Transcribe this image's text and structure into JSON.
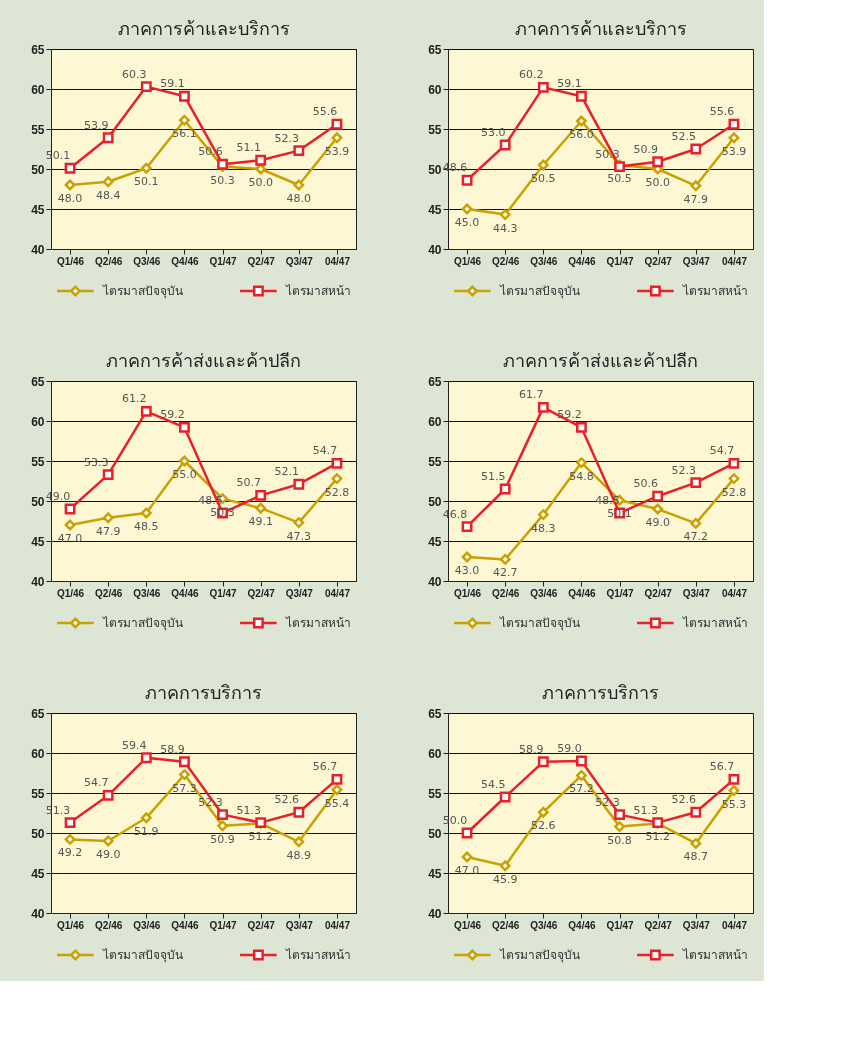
{
  "chart_data": [
    {
      "type": "line",
      "title": "ภาคการค้าและบริการ",
      "categories": [
        "Q1/46",
        "Q2/46",
        "Q3/46",
        "Q4/46",
        "Q1/47",
        "Q2/47",
        "Q3/47",
        "04/47"
      ],
      "ylim": [
        40,
        65
      ],
      "yticks": [
        40,
        45,
        50,
        55,
        60,
        65
      ],
      "grid": "y",
      "legend": "bottom",
      "series": [
        {
          "name": "ไตรมาสปัจจุบัน",
          "color": "#c9a100",
          "marker": "diamond",
          "values": [
            48.0,
            48.4,
            50.1,
            56.1,
            50.3,
            50.0,
            48.0,
            53.9
          ],
          "value_labels": [
            "48.0",
            "48.4",
            "50.1",
            "56.1",
            "50.3",
            "50.0",
            "48.0",
            "53.9"
          ]
        },
        {
          "name": "ไตรมาสหน้า",
          "color": "#e8202a",
          "marker": "square",
          "values": [
            50.1,
            53.9,
            60.3,
            59.1,
            50.6,
            51.1,
            52.3,
            55.6
          ],
          "value_labels": [
            "50.1",
            "53.9",
            "60.3",
            "59.1",
            "50.6",
            "51.1",
            "52.3",
            "55.6"
          ]
        }
      ]
    },
    {
      "type": "line",
      "title": "ภาคการค้าและบริการ",
      "categories": [
        "Q1/46",
        "Q2/46",
        "Q3/46",
        "Q4/46",
        "Q1/47",
        "Q2/47",
        "Q3/47",
        "04/47"
      ],
      "ylim": [
        40,
        65
      ],
      "yticks": [
        40,
        45,
        50,
        55,
        60,
        65
      ],
      "grid": "y",
      "legend": "bottom",
      "series": [
        {
          "name": "ไตรมาสปัจจุบัน",
          "color": "#c9a100",
          "marker": "diamond",
          "values": [
            45.0,
            44.3,
            50.5,
            56.0,
            50.5,
            50.0,
            47.9,
            53.9
          ],
          "value_labels": [
            "45.0",
            "44.3",
            "50.5",
            "56.0",
            "50.5",
            "50.0",
            "47.9",
            "53.9"
          ]
        },
        {
          "name": "ไตรมาสหน้า",
          "color": "#e8202a",
          "marker": "square",
          "values": [
            48.6,
            53.0,
            60.2,
            59.1,
            50.3,
            50.9,
            52.5,
            55.6
          ],
          "value_labels": [
            "48.6",
            "53.0",
            "60.2",
            "59.1",
            "50.3",
            "50.9",
            "52.5",
            "55.6"
          ]
        }
      ]
    },
    {
      "type": "line",
      "title": "ภาคการค้าส่งและค้าปลีก",
      "categories": [
        "Q1/46",
        "Q2/46",
        "Q3/46",
        "Q4/46",
        "Q1/47",
        "Q2/47",
        "Q3/47",
        "04/47"
      ],
      "ylim": [
        40,
        65
      ],
      "yticks": [
        40,
        45,
        50,
        55,
        60,
        65
      ],
      "grid": "y",
      "legend": "bottom",
      "series": [
        {
          "name": "ไตรมาสปัจจุบัน",
          "color": "#c9a100",
          "marker": "diamond",
          "values": [
            47.0,
            47.9,
            48.5,
            55.0,
            50.3,
            49.1,
            47.3,
            52.8
          ],
          "value_labels": [
            "47.0",
            "47.9",
            "48.5",
            "55.0",
            "50.3",
            "49.1",
            "47.3",
            "52.8"
          ]
        },
        {
          "name": "ไตรมาสหน้า",
          "color": "#e8202a",
          "marker": "square",
          "values": [
            49.0,
            53.3,
            61.2,
            59.2,
            48.5,
            50.7,
            52.1,
            54.7
          ],
          "value_labels": [
            "49.0",
            "53.3",
            "61.2",
            "59.2",
            "48.5",
            "50.7",
            "52.1",
            "54.7"
          ]
        }
      ]
    },
    {
      "type": "line",
      "title": "ภาคการค้าส่งและค้าปลีก",
      "categories": [
        "Q1/46",
        "Q2/46",
        "Q3/46",
        "Q4/46",
        "Q1/47",
        "Q2/47",
        "Q3/47",
        "04/47"
      ],
      "ylim": [
        40,
        65
      ],
      "yticks": [
        40,
        45,
        50,
        55,
        60,
        65
      ],
      "grid": "y",
      "legend": "bottom",
      "series": [
        {
          "name": "ไตรมาสปัจจุบัน",
          "color": "#c9a100",
          "marker": "diamond",
          "values": [
            43.0,
            42.7,
            48.3,
            54.8,
            50.1,
            49.0,
            47.2,
            52.8
          ],
          "value_labels": [
            "43.0",
            "42.7",
            "48.3",
            "54.8",
            "50.1",
            "49.0",
            "47.2",
            "52.8"
          ]
        },
        {
          "name": "ไตรมาสหน้า",
          "color": "#e8202a",
          "marker": "square",
          "values": [
            46.8,
            51.5,
            61.7,
            59.2,
            48.5,
            50.6,
            52.3,
            54.7
          ],
          "value_labels": [
            "46.8",
            "51.5",
            "61.7",
            "59.2",
            "48.5",
            "50.6",
            "52.3",
            "54.7"
          ]
        }
      ]
    },
    {
      "type": "line",
      "title": "ภาคการบริการ",
      "categories": [
        "Q1/46",
        "Q2/46",
        "Q3/46",
        "Q4/46",
        "Q1/47",
        "Q2/47",
        "Q3/47",
        "04/47"
      ],
      "ylim": [
        40,
        65
      ],
      "yticks": [
        40,
        45,
        50,
        55,
        60,
        65
      ],
      "grid": "y",
      "legend": "bottom",
      "series": [
        {
          "name": "ไตรมาสปัจจุบัน",
          "color": "#c9a100",
          "marker": "diamond",
          "values": [
            49.2,
            49.0,
            51.9,
            57.3,
            50.9,
            51.2,
            48.9,
            55.4
          ],
          "value_labels": [
            "49.2",
            "49.0",
            "51.9",
            "57.3",
            "50.9",
            "51.2",
            "48.9",
            "55.4"
          ]
        },
        {
          "name": "ไตรมาสหน้า",
          "color": "#e8202a",
          "marker": "square",
          "values": [
            51.3,
            54.7,
            59.4,
            58.9,
            52.3,
            51.3,
            52.6,
            56.7
          ],
          "value_labels": [
            "51.3",
            "54.7",
            "59.4",
            "58.9",
            "52.3",
            "51.3",
            "52.6",
            "56.7"
          ]
        }
      ]
    },
    {
      "type": "line",
      "title": "ภาคการบริการ",
      "categories": [
        "Q1/46",
        "Q2/46",
        "Q3/46",
        "Q4/46",
        "Q1/47",
        "Q2/47",
        "Q3/47",
        "04/47"
      ],
      "ylim": [
        40,
        65
      ],
      "yticks": [
        40,
        45,
        50,
        55,
        60,
        65
      ],
      "grid": "y",
      "legend": "bottom",
      "series": [
        {
          "name": "ไตรมาสปัจจุบัน",
          "color": "#c9a100",
          "marker": "diamond",
          "values": [
            47.0,
            45.9,
            52.6,
            57.2,
            50.8,
            51.2,
            48.7,
            55.3
          ],
          "value_labels": [
            "47.0",
            "45.9",
            "52.6",
            "57.2",
            "50.8",
            "51.2",
            "48.7",
            "55.3"
          ]
        },
        {
          "name": "ไตรมาสหน้า",
          "color": "#e8202a",
          "marker": "square",
          "values": [
            50.0,
            54.5,
            58.9,
            59.0,
            52.3,
            51.3,
            52.6,
            56.7
          ],
          "value_labels": [
            "50.0",
            "54.5",
            "58.9",
            "59.0",
            "52.3",
            "51.3",
            "52.6",
            "56.7"
          ]
        }
      ]
    }
  ]
}
